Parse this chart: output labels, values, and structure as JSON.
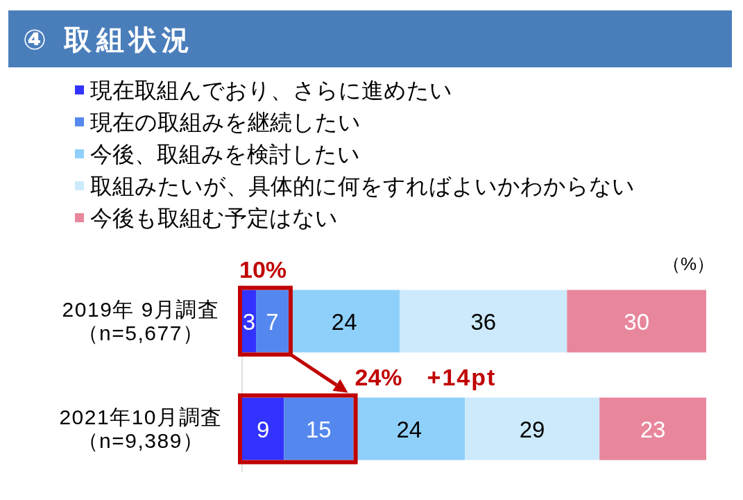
{
  "chart_data": {
    "type": "bar",
    "orientation": "horizontal",
    "stacked": true,
    "title": "④ 取組状況",
    "categories": [
      "2019年 9月調査（n=5,677）",
      "2021年10月調査（n=9,389）"
    ],
    "series": [
      {
        "name": "現在取組んでおり、さらに進めたい",
        "color": "#3333ff",
        "values": [
          3,
          9
        ]
      },
      {
        "name": "現在の取組みを継続したい",
        "color": "#5588ee",
        "values": [
          7,
          15
        ]
      },
      {
        "name": "今後、取組みを検討したい",
        "color": "#8fd0fa",
        "values": [
          24,
          24
        ]
      },
      {
        "name": "取組みたいが、具体的に何をすればよいかわからない",
        "color": "#cdeafd",
        "values": [
          36,
          29
        ]
      },
      {
        "name": "今後も取組む予定はない",
        "color": "#e8879c",
        "values": [
          30,
          23
        ]
      }
    ],
    "data_labels": true,
    "legend": "top",
    "tick_labels": "y",
    "annotations": [
      "（%）",
      {
        "text": "10%",
        "x": 10,
        "y": "2019年 9月調査（n=5,677）"
      },
      {
        "text": "24%",
        "x": 24,
        "y": "2021年10月調査（n=9,389）"
      },
      "+14pt"
    ]
  }
}
